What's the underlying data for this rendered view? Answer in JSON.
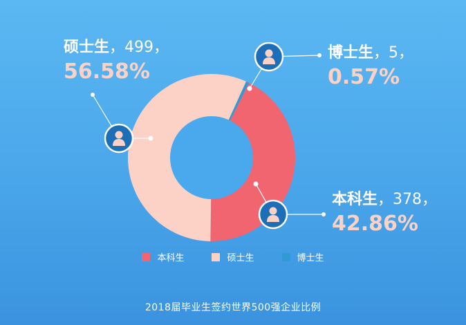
{
  "chart_data": {
    "type": "pie",
    "series": [
      {
        "name": "本科生",
        "count": "378",
        "value": 42.86,
        "percent_label": "42.86%"
      },
      {
        "name": "硕士生",
        "count": "499",
        "value": 56.58,
        "percent_label": "56.58%"
      },
      {
        "name": "博士生",
        "count": "5",
        "value": 0.57,
        "percent_label": "0.57%"
      }
    ],
    "colors": {
      "本科生": "#f06570",
      "硕士生": "#fcd2c7",
      "博士生": "#2f9ad3"
    },
    "legend_position": "bottom",
    "caption": "2018届毕业生签约世界500强企业比例"
  },
  "callouts": {
    "sep": "，",
    "master": {
      "name": "硕士生",
      "count": "499",
      "pct": "56.58%"
    },
    "phd": {
      "name": "博士生",
      "count": "5",
      "pct": "0.57%"
    },
    "bachelor": {
      "name": "本科生",
      "count": "378",
      "pct": "42.86%"
    }
  },
  "colors": {
    "label_pct": "#fcd2c7",
    "marker_fill": "#1c6fb6",
    "marker_person": "#fcd2c7"
  },
  "icons": {
    "marker": "person-icon"
  }
}
